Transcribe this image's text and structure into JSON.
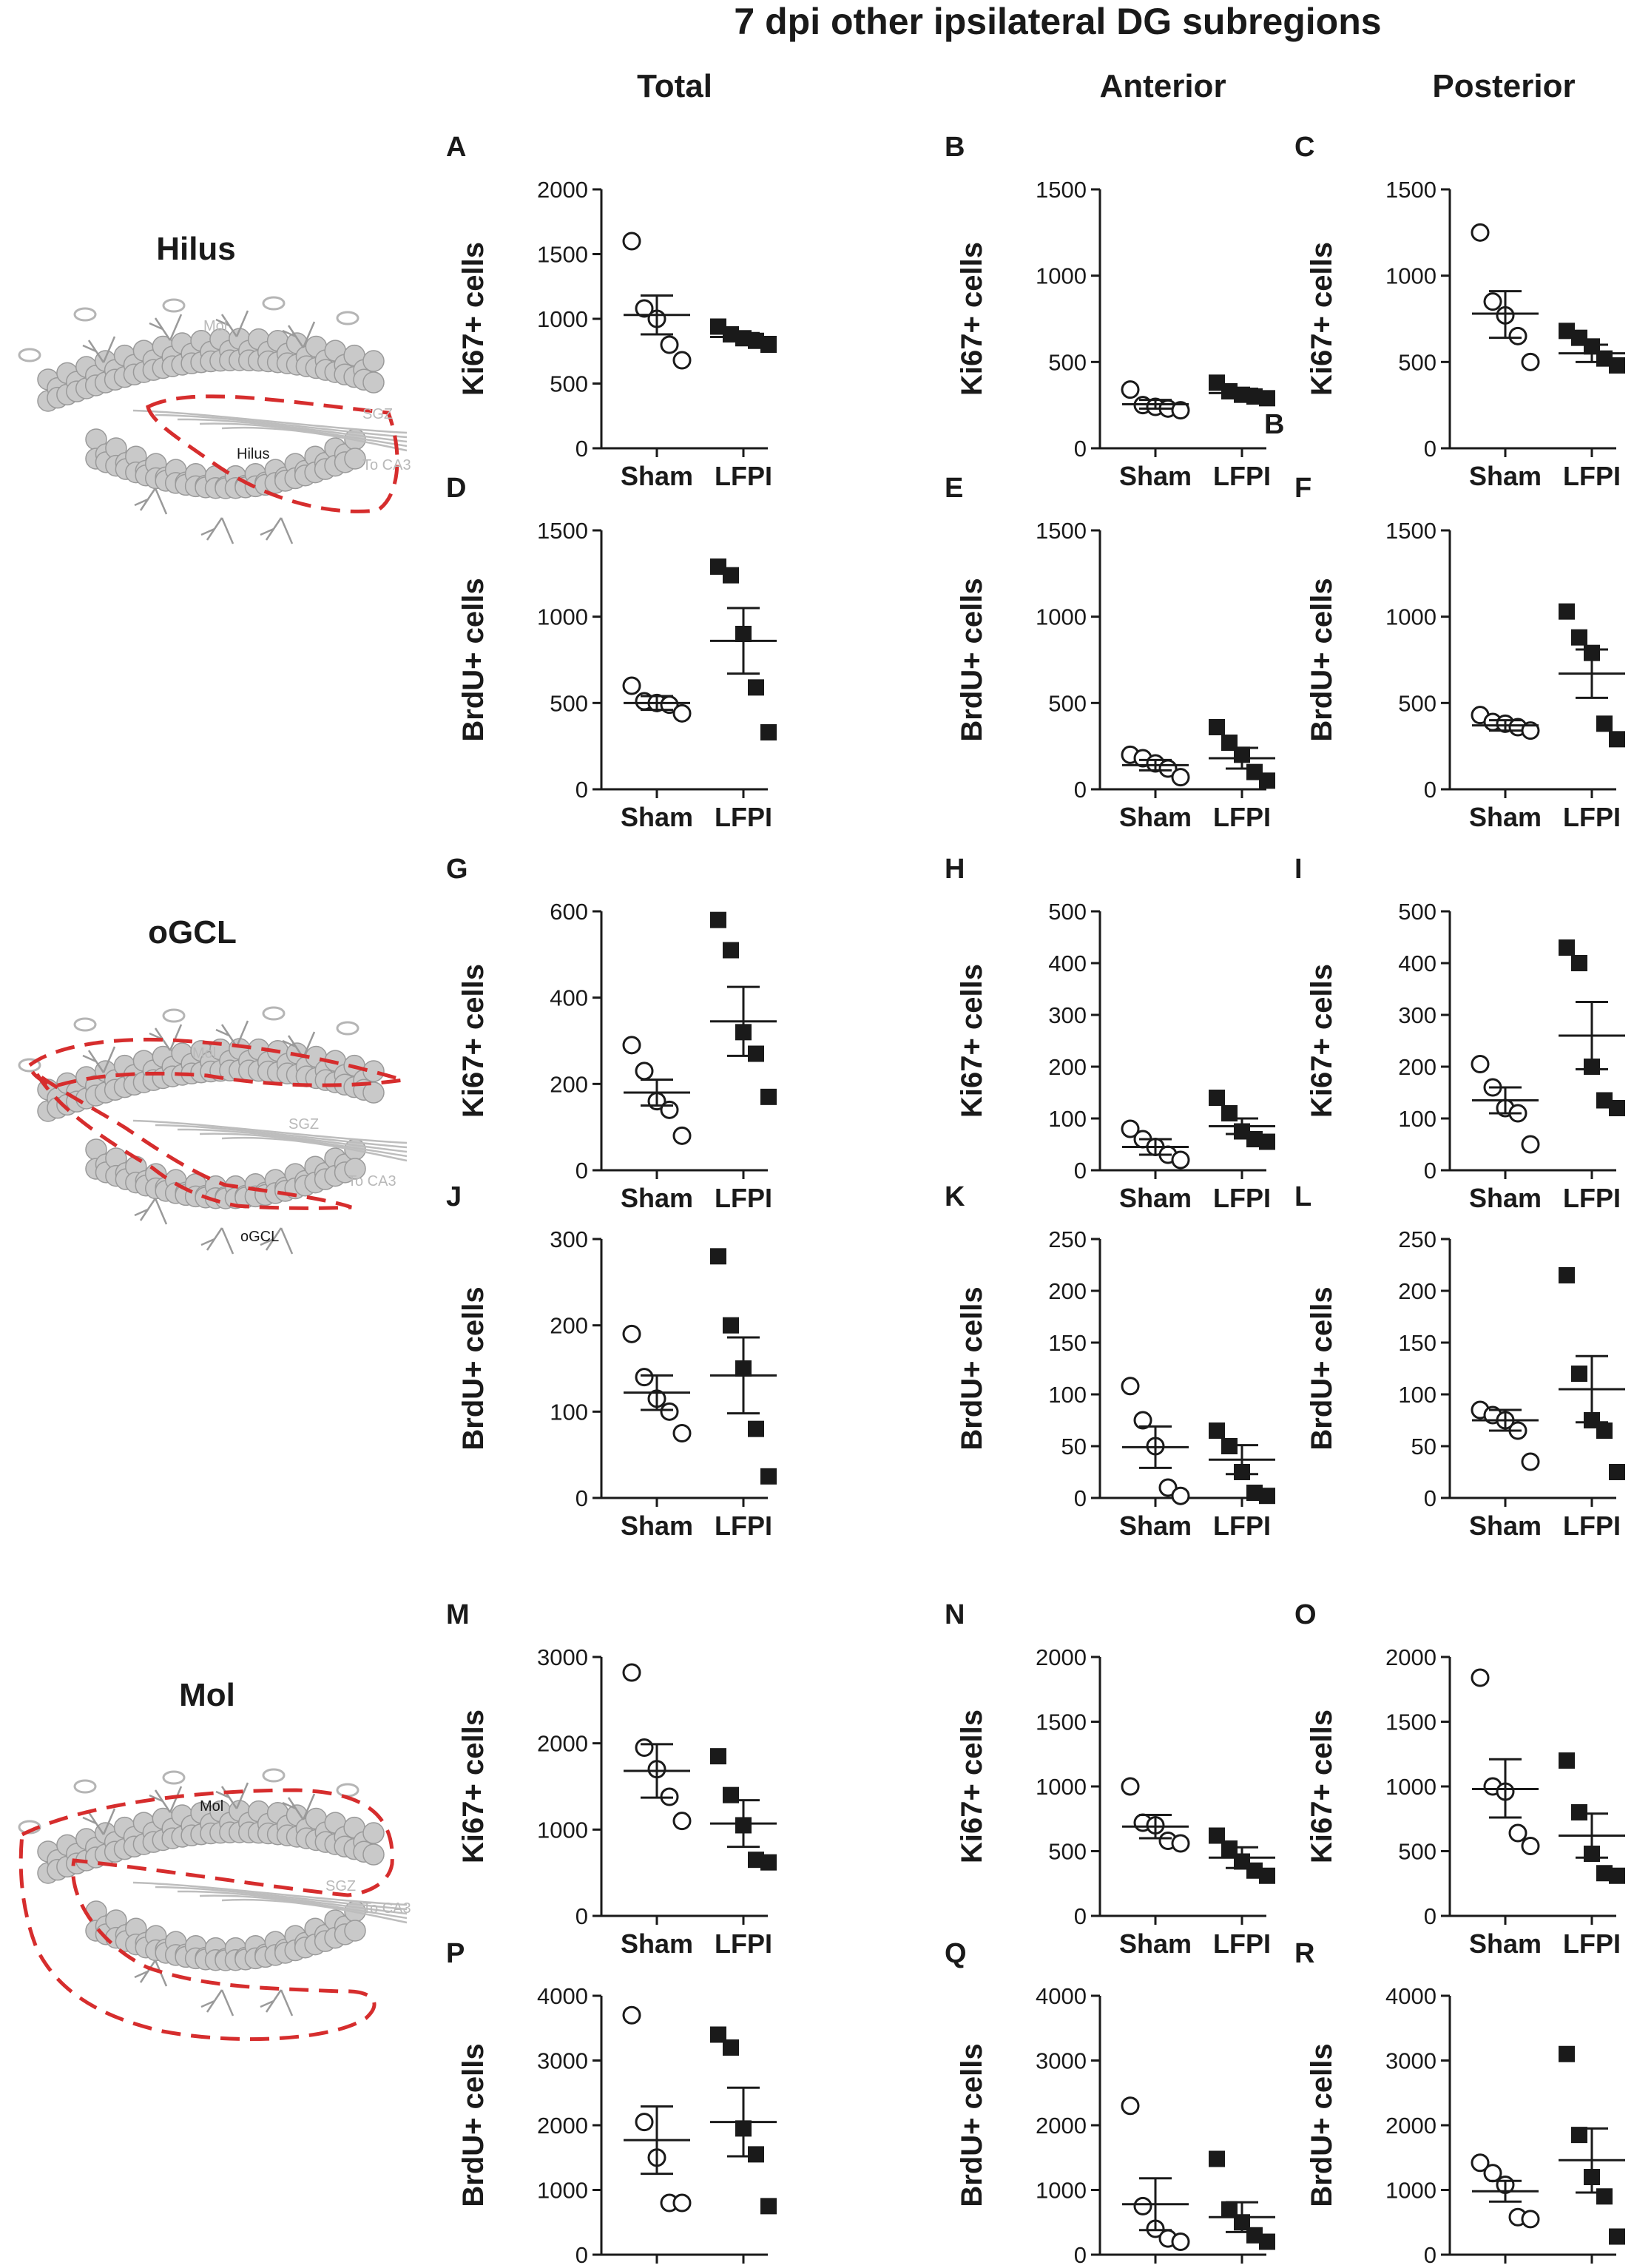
{
  "figure": {
    "title": "7 dpi other ipsilateral DG subregions",
    "columns": [
      "Total",
      "Anterior",
      "Posterior"
    ],
    "regions": [
      {
        "label": "Hilus",
        "schematic_labels": [
          "Mol",
          "SGZ",
          "Hilus",
          "To CA3"
        ]
      },
      {
        "label": "oGCL",
        "schematic_labels": [
          "Mol",
          "SGZ",
          "To CA3",
          "oGCL"
        ]
      },
      {
        "label": "Mol",
        "schematic_labels": [
          "Mol",
          "SGZ",
          "To CA3"
        ]
      }
    ],
    "colors": {
      "outline": "#d62d2d",
      "cells": "#c9c9c9",
      "cell_edge": "#9a9a9a",
      "ink": "#1a1a1a"
    }
  },
  "chart_data": [
    {
      "panel": "A",
      "type": "scatter",
      "ylabel": "Ki67+ cells",
      "categories": [
        "Sham",
        "LFPI"
      ],
      "yticks": [
        0,
        500,
        1000,
        1500,
        2000
      ],
      "ylim": [
        0,
        2000
      ],
      "series": [
        {
          "name": "Sham",
          "marker": "open-circle",
          "values": [
            1600,
            1080,
            1000,
            800,
            680
          ],
          "mean": 1030,
          "sem_lower": 880,
          "sem_upper": 1180
        },
        {
          "name": "LFPI",
          "marker": "filled-square",
          "values": [
            940,
            880,
            850,
            830,
            800
          ],
          "mean": 860,
          "sem_lower": 830,
          "sem_upper": 890
        }
      ]
    },
    {
      "panel": "B",
      "type": "scatter",
      "ylabel": "Ki67+ cells",
      "categories": [
        "Sham",
        "LFPI"
      ],
      "yticks": [
        0,
        500,
        1000,
        1500
      ],
      "ylim": [
        0,
        1500
      ],
      "annotation": "B",
      "series": [
        {
          "name": "Sham",
          "marker": "open-circle",
          "values": [
            340,
            250,
            240,
            230,
            220
          ],
          "mean": 255,
          "sem_lower": 230,
          "sem_upper": 280
        },
        {
          "name": "LFPI",
          "marker": "filled-square",
          "values": [
            380,
            330,
            310,
            300,
            290
          ],
          "mean": 320,
          "sem_lower": 300,
          "sem_upper": 345
        }
      ]
    },
    {
      "panel": "C",
      "type": "scatter",
      "ylabel": "Ki67+ cells",
      "categories": [
        "Sham",
        "LFPI"
      ],
      "yticks": [
        0,
        500,
        1000,
        1500
      ],
      "ylim": [
        0,
        1500
      ],
      "series": [
        {
          "name": "Sham",
          "marker": "open-circle",
          "values": [
            1250,
            850,
            770,
            650,
            500
          ],
          "mean": 780,
          "sem_lower": 640,
          "sem_upper": 910
        },
        {
          "name": "LFPI",
          "marker": "filled-square",
          "values": [
            680,
            640,
            590,
            520,
            480
          ],
          "mean": 550,
          "sem_lower": 500,
          "sem_upper": 600
        }
      ]
    },
    {
      "panel": "D",
      "type": "scatter",
      "ylabel": "BrdU+ cells",
      "categories": [
        "Sham",
        "LFPI"
      ],
      "yticks": [
        0,
        500,
        1000,
        1500
      ],
      "ylim": [
        0,
        1500
      ],
      "series": [
        {
          "name": "Sham",
          "marker": "open-circle",
          "values": [
            600,
            510,
            500,
            490,
            440
          ],
          "mean": 500,
          "sem_lower": 460,
          "sem_upper": 540
        },
        {
          "name": "LFPI",
          "marker": "filled-square",
          "values": [
            1290,
            1240,
            900,
            590,
            330
          ],
          "mean": 860,
          "sem_lower": 670,
          "sem_upper": 1050
        }
      ]
    },
    {
      "panel": "E",
      "type": "scatter",
      "ylabel": "BrdU+ cells",
      "categories": [
        "Sham",
        "LFPI"
      ],
      "yticks": [
        0,
        500,
        1000,
        1500
      ],
      "ylim": [
        0,
        1500
      ],
      "series": [
        {
          "name": "Sham",
          "marker": "open-circle",
          "values": [
            200,
            180,
            150,
            120,
            70
          ],
          "mean": 140,
          "sem_lower": 110,
          "sem_upper": 170
        },
        {
          "name": "LFPI",
          "marker": "filled-square",
          "values": [
            360,
            270,
            200,
            100,
            50
          ],
          "mean": 180,
          "sem_lower": 120,
          "sem_upper": 240
        }
      ]
    },
    {
      "panel": "F",
      "type": "scatter",
      "ylabel": "BrdU+ cells",
      "categories": [
        "Sham",
        "LFPI"
      ],
      "yticks": [
        0,
        500,
        1000,
        1500
      ],
      "ylim": [
        0,
        1500
      ],
      "series": [
        {
          "name": "Sham",
          "marker": "open-circle",
          "values": [
            430,
            390,
            380,
            360,
            340
          ],
          "mean": 370,
          "sem_lower": 340,
          "sem_upper": 400
        },
        {
          "name": "LFPI",
          "marker": "filled-square",
          "values": [
            1030,
            880,
            790,
            380,
            290
          ],
          "mean": 670,
          "sem_lower": 530,
          "sem_upper": 810
        }
      ]
    },
    {
      "panel": "G",
      "type": "scatter",
      "ylabel": "Ki67+ cells",
      "categories": [
        "Sham",
        "LFPI"
      ],
      "yticks": [
        0,
        200,
        400,
        600
      ],
      "ylim": [
        0,
        600
      ],
      "series": [
        {
          "name": "Sham",
          "marker": "open-circle",
          "values": [
            290,
            230,
            160,
            140,
            80
          ],
          "mean": 180,
          "sem_lower": 150,
          "sem_upper": 210
        },
        {
          "name": "LFPI",
          "marker": "filled-square",
          "values": [
            580,
            510,
            320,
            270,
            170
          ],
          "mean": 345,
          "sem_lower": 265,
          "sem_upper": 425
        }
      ]
    },
    {
      "panel": "H",
      "type": "scatter",
      "ylabel": "Ki67+ cells",
      "categories": [
        "Sham",
        "LFPI"
      ],
      "yticks": [
        0,
        100,
        200,
        300,
        400,
        500
      ],
      "ylim": [
        0,
        500
      ],
      "series": [
        {
          "name": "Sham",
          "marker": "open-circle",
          "values": [
            80,
            60,
            45,
            30,
            20
          ],
          "mean": 45,
          "sem_lower": 30,
          "sem_upper": 60
        },
        {
          "name": "LFPI",
          "marker": "filled-square",
          "values": [
            140,
            110,
            75,
            60,
            55
          ],
          "mean": 85,
          "sem_lower": 70,
          "sem_upper": 100
        }
      ]
    },
    {
      "panel": "I",
      "type": "scatter",
      "ylabel": "Ki67+ cells",
      "categories": [
        "Sham",
        "LFPI"
      ],
      "yticks": [
        0,
        100,
        200,
        300,
        400,
        500
      ],
      "ylim": [
        0,
        500
      ],
      "series": [
        {
          "name": "Sham",
          "marker": "open-circle",
          "values": [
            205,
            160,
            120,
            110,
            50
          ],
          "mean": 135,
          "sem_lower": 110,
          "sem_upper": 160
        },
        {
          "name": "LFPI",
          "marker": "filled-square",
          "values": [
            430,
            400,
            200,
            135,
            120
          ],
          "mean": 260,
          "sem_lower": 195,
          "sem_upper": 325
        }
      ]
    },
    {
      "panel": "J",
      "type": "scatter",
      "ylabel": "BrdU+ cells",
      "categories": [
        "Sham",
        "LFPI"
      ],
      "yticks": [
        0,
        100,
        200,
        300
      ],
      "ylim": [
        0,
        300
      ],
      "series": [
        {
          "name": "Sham",
          "marker": "open-circle",
          "values": [
            190,
            140,
            115,
            100,
            75
          ],
          "mean": 122,
          "sem_lower": 102,
          "sem_upper": 142
        },
        {
          "name": "LFPI",
          "marker": "filled-square",
          "values": [
            280,
            200,
            150,
            80,
            25
          ],
          "mean": 142,
          "sem_lower": 98,
          "sem_upper": 186
        }
      ]
    },
    {
      "panel": "K",
      "type": "scatter",
      "ylabel": "BrdU+ cells",
      "categories": [
        "Sham",
        "LFPI"
      ],
      "yticks": [
        0,
        50,
        100,
        150,
        200,
        250
      ],
      "ylim": [
        0,
        250
      ],
      "series": [
        {
          "name": "Sham",
          "marker": "open-circle",
          "values": [
            108,
            75,
            50,
            10,
            2
          ],
          "mean": 49,
          "sem_lower": 29,
          "sem_upper": 69
        },
        {
          "name": "LFPI",
          "marker": "filled-square",
          "values": [
            65,
            50,
            25,
            5,
            2
          ],
          "mean": 37,
          "sem_lower": 23,
          "sem_upper": 51
        }
      ]
    },
    {
      "panel": "L",
      "type": "scatter",
      "ylabel": "BrdU+ cells",
      "categories": [
        "Sham",
        "LFPI"
      ],
      "yticks": [
        0,
        50,
        100,
        150,
        200,
        250
      ],
      "ylim": [
        0,
        250
      ],
      "series": [
        {
          "name": "Sham",
          "marker": "open-circle",
          "values": [
            85,
            80,
            75,
            65,
            35
          ],
          "mean": 75,
          "sem_lower": 65,
          "sem_upper": 85
        },
        {
          "name": "LFPI",
          "marker": "filled-square",
          "values": [
            215,
            120,
            75,
            65,
            25
          ],
          "mean": 105,
          "sem_lower": 73,
          "sem_upper": 137
        }
      ]
    },
    {
      "panel": "M",
      "type": "scatter",
      "ylabel": "Ki67+ cells",
      "categories": [
        "Sham",
        "LFPI"
      ],
      "yticks": [
        0,
        1000,
        2000,
        3000
      ],
      "ylim": [
        0,
        3000
      ],
      "series": [
        {
          "name": "Sham",
          "marker": "open-circle",
          "values": [
            2820,
            1950,
            1700,
            1380,
            1100
          ],
          "mean": 1680,
          "sem_lower": 1370,
          "sem_upper": 1990
        },
        {
          "name": "LFPI",
          "marker": "filled-square",
          "values": [
            1850,
            1400,
            1050,
            650,
            620
          ],
          "mean": 1070,
          "sem_lower": 800,
          "sem_upper": 1340
        }
      ]
    },
    {
      "panel": "N",
      "type": "scatter",
      "ylabel": "Ki67+ cells",
      "categories": [
        "Sham",
        "LFPI"
      ],
      "yticks": [
        0,
        500,
        1000,
        1500,
        2000
      ],
      "ylim": [
        0,
        2000
      ],
      "series": [
        {
          "name": "Sham",
          "marker": "open-circle",
          "values": [
            1000,
            720,
            700,
            580,
            560
          ],
          "mean": 690,
          "sem_lower": 600,
          "sem_upper": 780
        },
        {
          "name": "LFPI",
          "marker": "filled-square",
          "values": [
            620,
            520,
            420,
            350,
            310
          ],
          "mean": 450,
          "sem_lower": 370,
          "sem_upper": 530
        }
      ]
    },
    {
      "panel": "O",
      "type": "scatter",
      "ylabel": "Ki67+ cells",
      "categories": [
        "Sham",
        "LFPI"
      ],
      "yticks": [
        0,
        500,
        1000,
        1500,
        2000
      ],
      "ylim": [
        0,
        2000
      ],
      "series": [
        {
          "name": "Sham",
          "marker": "open-circle",
          "values": [
            1840,
            1000,
            960,
            640,
            540
          ],
          "mean": 980,
          "sem_lower": 760,
          "sem_upper": 1210
        },
        {
          "name": "LFPI",
          "marker": "filled-square",
          "values": [
            1200,
            800,
            480,
            330,
            310
          ],
          "mean": 620,
          "sem_lower": 450,
          "sem_upper": 790
        }
      ]
    },
    {
      "panel": "P",
      "type": "scatter",
      "ylabel": "BrdU+ cells",
      "categories": [
        "Sham",
        "LFPI"
      ],
      "yticks": [
        0,
        1000,
        2000,
        3000,
        4000
      ],
      "ylim": [
        0,
        4000
      ],
      "series": [
        {
          "name": "Sham",
          "marker": "open-circle",
          "values": [
            3700,
            2050,
            1500,
            800,
            800
          ],
          "mean": 1770,
          "sem_lower": 1250,
          "sem_upper": 2290
        },
        {
          "name": "LFPI",
          "marker": "filled-square",
          "values": [
            3400,
            3200,
            1950,
            1550,
            750
          ],
          "mean": 2050,
          "sem_lower": 1520,
          "sem_upper": 2580
        }
      ]
    },
    {
      "panel": "Q",
      "type": "scatter",
      "ylabel": "BrdU+ cells",
      "categories": [
        "Sham",
        "LFPI"
      ],
      "yticks": [
        0,
        1000,
        2000,
        3000,
        4000
      ],
      "ylim": [
        0,
        4000
      ],
      "series": [
        {
          "name": "Sham",
          "marker": "open-circle",
          "values": [
            2300,
            750,
            400,
            250,
            200
          ],
          "mean": 780,
          "sem_lower": 380,
          "sem_upper": 1180
        },
        {
          "name": "LFPI",
          "marker": "filled-square",
          "values": [
            1480,
            700,
            500,
            300,
            200
          ],
          "mean": 580,
          "sem_lower": 350,
          "sem_upper": 810
        }
      ]
    },
    {
      "panel": "R",
      "type": "scatter",
      "ylabel": "BrdU+ cells",
      "categories": [
        "Sham",
        "LFPI"
      ],
      "yticks": [
        0,
        1000,
        2000,
        3000,
        4000
      ],
      "ylim": [
        0,
        4000
      ],
      "series": [
        {
          "name": "Sham",
          "marker": "open-circle",
          "values": [
            1420,
            1260,
            1080,
            580,
            550
          ],
          "mean": 980,
          "sem_lower": 820,
          "sem_upper": 1140
        },
        {
          "name": "LFPI",
          "marker": "filled-square",
          "values": [
            3100,
            1850,
            1200,
            900,
            280
          ],
          "mean": 1460,
          "sem_lower": 960,
          "sem_upper": 1950
        }
      ]
    }
  ]
}
